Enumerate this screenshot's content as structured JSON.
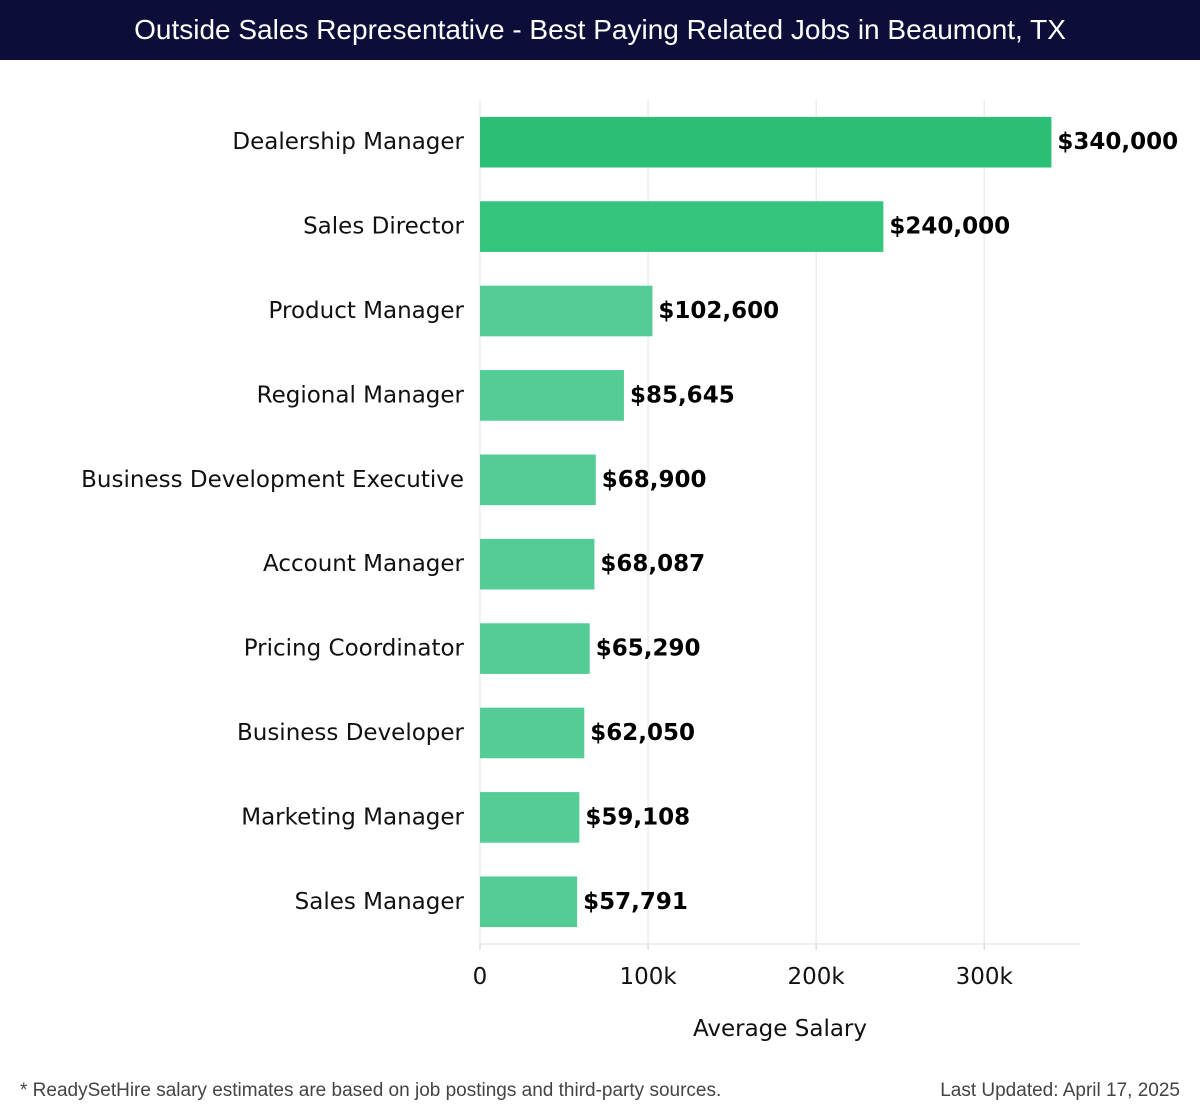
{
  "header": {
    "title": "Outside Sales Representative - Best Paying Related Jobs in Beaumont, TX"
  },
  "footer": {
    "note": "* ReadySetHire salary estimates are based on job postings and third-party sources.",
    "updated": "Last Updated: April 17, 2025"
  },
  "chart_data": {
    "type": "bar",
    "orientation": "horizontal",
    "title": "Outside Sales Representative - Best Paying Related Jobs in Beaumont, TX",
    "xlabel": "Average Salary",
    "ylabel": "",
    "xlim": [
      0,
      357000
    ],
    "x_ticks": [
      0,
      100000,
      200000,
      300000
    ],
    "x_tick_labels": [
      "0",
      "100k",
      "200k",
      "300k"
    ],
    "grid": "vertical",
    "categories": [
      "Dealership Manager",
      "Sales Director",
      "Product Manager",
      "Regional Manager",
      "Business Development Executive",
      "Account Manager",
      "Pricing Coordinator",
      "Business Developer",
      "Marketing Manager",
      "Sales Manager"
    ],
    "values": [
      340000,
      240000,
      102600,
      85645,
      68900,
      68087,
      65290,
      62050,
      59108,
      57791
    ],
    "value_labels": [
      "$340,000",
      "$240,000",
      "$102,600",
      "$85,645",
      "$68,900",
      "$68,087",
      "$65,290",
      "$62,050",
      "$59,108",
      "$57,791"
    ],
    "colors": {
      "top": "#2bbf76",
      "second": "#34c47c",
      "rest": "#55cc95"
    }
  }
}
